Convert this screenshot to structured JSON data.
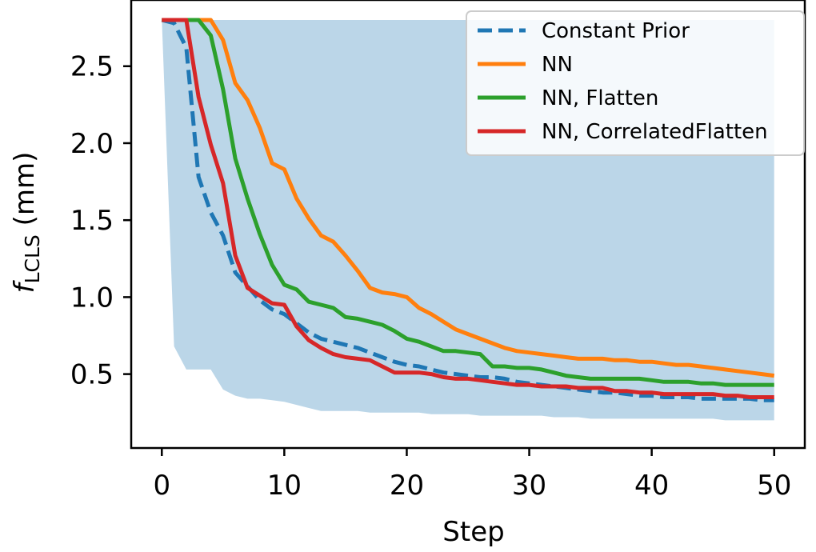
{
  "chart_data": {
    "type": "line",
    "xlabel": "Step",
    "ylabel": {
      "base": "f",
      "sub": "LCLS",
      "unit": "(mm)"
    },
    "xlim": [
      -2.5,
      52.5
    ],
    "ylim": [
      0.02,
      2.93
    ],
    "xticks": [
      0,
      10,
      20,
      30,
      40,
      50
    ],
    "yticks": [
      0.5,
      1.0,
      1.5,
      2.0,
      2.5
    ],
    "xtick_labels": [
      "0",
      "10",
      "20",
      "30",
      "40",
      "50"
    ],
    "ytick_labels": [
      "0.5",
      "1.0",
      "1.5",
      "2.0",
      "2.5"
    ],
    "legend_position": "top-right",
    "series": [
      {
        "name": "Constant Prior",
        "color": "#1f77b4",
        "dashed": true,
        "x": [
          0,
          1,
          2,
          3,
          4,
          5,
          6,
          7,
          8,
          9,
          10,
          11,
          12,
          13,
          14,
          15,
          16,
          17,
          18,
          19,
          20,
          21,
          22,
          23,
          24,
          25,
          26,
          27,
          28,
          29,
          30,
          31,
          32,
          33,
          34,
          35,
          36,
          37,
          38,
          39,
          40,
          41,
          42,
          43,
          44,
          45,
          46,
          47,
          48,
          49,
          50
        ],
        "mean": [
          2.8,
          2.78,
          2.62,
          1.78,
          1.55,
          1.4,
          1.16,
          1.07,
          0.98,
          0.92,
          0.89,
          0.83,
          0.77,
          0.73,
          0.71,
          0.69,
          0.67,
          0.64,
          0.61,
          0.58,
          0.56,
          0.55,
          0.53,
          0.51,
          0.5,
          0.49,
          0.48,
          0.48,
          0.47,
          0.45,
          0.44,
          0.43,
          0.42,
          0.41,
          0.4,
          0.39,
          0.38,
          0.38,
          0.37,
          0.36,
          0.36,
          0.35,
          0.35,
          0.35,
          0.34,
          0.34,
          0.34,
          0.34,
          0.34,
          0.33,
          0.33
        ],
        "upper": [
          2.8,
          2.8,
          2.8,
          2.8,
          2.8,
          2.8,
          2.8,
          2.8,
          2.8,
          2.8,
          2.8,
          2.8,
          2.8,
          2.8,
          2.8,
          2.8,
          2.8,
          2.8,
          2.8,
          2.8,
          2.8,
          2.8,
          2.8,
          2.8,
          2.8,
          2.8,
          2.8,
          2.8,
          2.8,
          2.8,
          2.8,
          2.8,
          2.8,
          2.8,
          2.8,
          2.8,
          2.8,
          2.8,
          2.8,
          2.8,
          2.8,
          2.8,
          2.8,
          2.8,
          2.8,
          2.8,
          2.8,
          2.8,
          2.8,
          2.8,
          2.8
        ],
        "lower": [
          2.8,
          0.68,
          0.53,
          0.53,
          0.53,
          0.4,
          0.36,
          0.34,
          0.34,
          0.33,
          0.32,
          0.3,
          0.28,
          0.26,
          0.26,
          0.26,
          0.26,
          0.25,
          0.25,
          0.25,
          0.25,
          0.25,
          0.24,
          0.24,
          0.24,
          0.24,
          0.23,
          0.23,
          0.23,
          0.23,
          0.23,
          0.23,
          0.22,
          0.22,
          0.22,
          0.21,
          0.21,
          0.21,
          0.21,
          0.21,
          0.21,
          0.21,
          0.21,
          0.21,
          0.21,
          0.21,
          0.2,
          0.2,
          0.2,
          0.2,
          0.2
        ]
      },
      {
        "name": "NN",
        "color": "#ff7f0e",
        "dashed": false,
        "x": [
          0,
          1,
          2,
          3,
          4,
          5,
          6,
          7,
          8,
          9,
          10,
          11,
          12,
          13,
          14,
          15,
          16,
          17,
          18,
          19,
          20,
          21,
          22,
          23,
          24,
          25,
          26,
          27,
          28,
          29,
          30,
          31,
          32,
          33,
          34,
          35,
          36,
          37,
          38,
          39,
          40,
          41,
          42,
          43,
          44,
          45,
          46,
          47,
          48,
          49,
          50
        ],
        "mean": [
          2.8,
          2.8,
          2.8,
          2.8,
          2.8,
          2.67,
          2.39,
          2.28,
          2.1,
          1.87,
          1.83,
          1.64,
          1.51,
          1.4,
          1.36,
          1.27,
          1.17,
          1.06,
          1.03,
          1.02,
          1.0,
          0.93,
          0.89,
          0.84,
          0.79,
          0.76,
          0.73,
          0.7,
          0.67,
          0.65,
          0.64,
          0.63,
          0.62,
          0.61,
          0.6,
          0.6,
          0.6,
          0.59,
          0.59,
          0.58,
          0.58,
          0.57,
          0.56,
          0.56,
          0.55,
          0.54,
          0.53,
          0.52,
          0.51,
          0.5,
          0.49
        ],
        "upper": [
          2.8,
          2.8,
          2.8,
          2.8,
          2.8,
          2.8,
          2.8,
          2.8,
          2.8,
          2.8,
          2.8,
          2.8,
          2.8,
          2.8,
          2.8,
          2.8,
          2.8,
          2.8,
          2.8,
          2.8,
          2.8,
          2.8,
          2.8,
          2.8,
          2.8,
          2.8,
          2.8,
          2.8,
          2.8,
          2.8,
          2.8,
          2.8,
          2.8,
          2.8,
          2.8,
          2.8,
          2.8,
          2.8,
          2.8,
          2.8,
          2.8,
          2.8,
          2.8,
          2.8,
          2.8,
          2.8,
          2.8,
          2.8,
          2.8,
          2.8,
          2.8
        ],
        "lower": [
          2.8,
          2.8,
          2.8,
          2.8,
          2.8,
          2.8,
          2.8,
          2.8,
          2.8,
          2.8,
          2.8,
          2.8,
          2.8,
          2.8,
          2.8,
          2.8,
          2.8,
          2.8,
          2.8,
          2.8,
          2.8,
          2.8,
          2.8,
          2.8,
          2.8,
          2.8,
          2.8,
          2.8,
          2.8,
          2.8,
          2.8,
          2.8,
          2.8,
          2.8,
          2.8,
          2.8,
          2.8,
          2.8,
          2.8,
          2.8,
          2.8,
          2.8,
          2.8,
          2.8,
          2.8,
          2.8,
          2.8,
          2.8,
          2.8,
          2.8,
          2.8
        ]
      },
      {
        "name": "NN, Flatten",
        "color": "#2ca02c",
        "dashed": false,
        "x": [
          0,
          1,
          2,
          3,
          4,
          5,
          6,
          7,
          8,
          9,
          10,
          11,
          12,
          13,
          14,
          15,
          16,
          17,
          18,
          19,
          20,
          21,
          22,
          23,
          24,
          25,
          26,
          27,
          28,
          29,
          30,
          31,
          32,
          33,
          34,
          35,
          36,
          37,
          38,
          39,
          40,
          41,
          42,
          43,
          44,
          45,
          46,
          47,
          48,
          49,
          50
        ],
        "mean": [
          2.8,
          2.8,
          2.8,
          2.8,
          2.7,
          2.35,
          1.9,
          1.64,
          1.41,
          1.21,
          1.08,
          1.05,
          0.97,
          0.95,
          0.93,
          0.87,
          0.86,
          0.84,
          0.82,
          0.78,
          0.73,
          0.71,
          0.68,
          0.65,
          0.65,
          0.64,
          0.63,
          0.55,
          0.55,
          0.54,
          0.54,
          0.53,
          0.51,
          0.49,
          0.48,
          0.47,
          0.47,
          0.47,
          0.47,
          0.47,
          0.46,
          0.45,
          0.45,
          0.45,
          0.44,
          0.44,
          0.43,
          0.43,
          0.43,
          0.43,
          0.43
        ],
        "upper": [
          2.8,
          2.8,
          2.8,
          2.8,
          2.8,
          2.8,
          2.8,
          2.8,
          2.8,
          2.8,
          2.8,
          2.8,
          2.8,
          2.8,
          2.8,
          2.8,
          2.8,
          2.8,
          2.8,
          2.8,
          2.8,
          2.8,
          2.8,
          2.8,
          2.8,
          2.8,
          2.8,
          2.8,
          2.8,
          2.8,
          2.8,
          2.8,
          2.8,
          2.8,
          2.8,
          2.8,
          2.8,
          2.8,
          2.8,
          2.8,
          2.8,
          2.8,
          2.8,
          2.8,
          2.8,
          2.8,
          2.8,
          2.8,
          2.8,
          2.8,
          2.8
        ],
        "lower": [
          2.8,
          2.8,
          2.8,
          2.8,
          2.8,
          2.8,
          2.8,
          2.8,
          2.8,
          2.8,
          2.8,
          2.8,
          2.8,
          2.8,
          2.8,
          2.8,
          2.8,
          2.8,
          2.8,
          2.8,
          2.8,
          2.8,
          2.8,
          2.8,
          2.8,
          2.8,
          2.8,
          2.8,
          2.8,
          2.8,
          2.8,
          2.8,
          2.8,
          2.8,
          2.8,
          2.8,
          2.8,
          2.8,
          2.8,
          2.8,
          2.8,
          2.8,
          2.8,
          2.8,
          2.8,
          2.8,
          2.8,
          2.8,
          2.8,
          2.8,
          2.8
        ]
      },
      {
        "name": "NN, CorrelatedFlatten",
        "color": "#d62728",
        "dashed": false,
        "x": [
          0,
          1,
          2,
          3,
          4,
          5,
          6,
          7,
          8,
          9,
          10,
          11,
          12,
          13,
          14,
          15,
          16,
          17,
          18,
          19,
          20,
          21,
          22,
          23,
          24,
          25,
          26,
          27,
          28,
          29,
          30,
          31,
          32,
          33,
          34,
          35,
          36,
          37,
          38,
          39,
          40,
          41,
          42,
          43,
          44,
          45,
          46,
          47,
          48,
          49,
          50
        ],
        "mean": [
          2.8,
          2.8,
          2.8,
          2.3,
          1.99,
          1.74,
          1.27,
          1.06,
          1.01,
          0.96,
          0.95,
          0.81,
          0.72,
          0.67,
          0.63,
          0.61,
          0.6,
          0.59,
          0.55,
          0.51,
          0.51,
          0.51,
          0.5,
          0.48,
          0.47,
          0.47,
          0.46,
          0.45,
          0.44,
          0.43,
          0.43,
          0.42,
          0.42,
          0.42,
          0.41,
          0.41,
          0.41,
          0.39,
          0.39,
          0.38,
          0.38,
          0.37,
          0.37,
          0.37,
          0.37,
          0.37,
          0.36,
          0.36,
          0.35,
          0.35,
          0.35
        ],
        "upper": [
          2.8,
          2.8,
          2.8,
          2.8,
          2.8,
          2.8,
          2.8,
          2.8,
          2.8,
          2.8,
          2.8,
          2.8,
          2.8,
          2.8,
          2.8,
          2.8,
          2.8,
          2.8,
          2.8,
          2.8,
          2.8,
          2.8,
          2.8,
          2.8,
          2.8,
          2.8,
          2.8,
          2.8,
          2.8,
          2.8,
          2.8,
          2.8,
          2.8,
          2.8,
          2.8,
          2.8,
          2.8,
          2.8,
          2.8,
          2.8,
          2.8,
          2.8,
          2.8,
          2.8,
          2.8,
          2.8,
          2.8,
          2.8,
          2.8,
          2.8,
          2.8
        ],
        "lower": [
          2.8,
          2.8,
          2.8,
          2.8,
          2.8,
          2.8,
          2.8,
          2.8,
          2.8,
          2.8,
          2.8,
          2.8,
          2.8,
          2.8,
          2.8,
          2.8,
          2.8,
          2.8,
          2.8,
          2.8,
          2.8,
          2.8,
          2.8,
          2.8,
          2.8,
          2.8,
          2.8,
          2.8,
          2.8,
          2.8,
          2.8,
          2.8,
          2.8,
          2.8,
          2.8,
          2.8,
          2.8,
          2.8,
          2.8,
          2.8,
          2.8,
          2.8,
          2.8,
          2.8,
          2.8,
          2.8,
          2.8,
          2.8,
          2.8,
          2.8,
          2.8
        ]
      }
    ]
  }
}
